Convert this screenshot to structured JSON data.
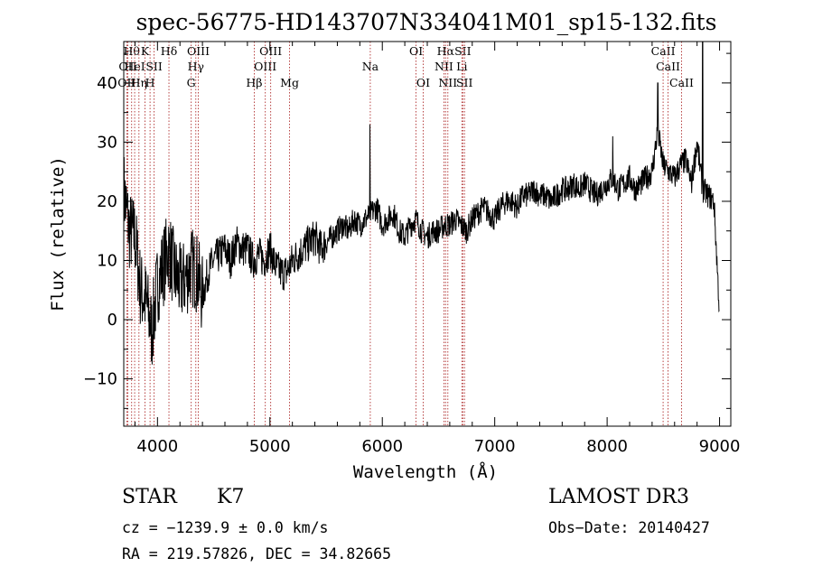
{
  "chart_data": {
    "type": "line",
    "title": "spec-56775-HD143707N334041M01_sp15-132.fits",
    "xlabel": "Wavelength (Å)",
    "ylabel": "Flux (relative)",
    "xlim": [
      3700,
      9100
    ],
    "ylim": [
      -18,
      47
    ],
    "x_ticks": [
      4000,
      5000,
      6000,
      7000,
      8000,
      9000
    ],
    "y_ticks": [
      -10,
      0,
      10,
      20,
      30,
      40
    ],
    "grid": false,
    "series": [
      {
        "x": [
          3700,
          3750,
          3800,
          3850,
          3900,
          3950,
          4000,
          4050,
          4100,
          4150,
          4200,
          4250,
          4300,
          4350,
          4400,
          4450,
          4500,
          4550,
          4600,
          4650,
          4700,
          4750,
          4800,
          4850,
          4900,
          4950,
          5000,
          5050,
          5100,
          5150,
          5200,
          5250,
          5300,
          5350,
          5400,
          5450,
          5500,
          5550,
          5600,
          5650,
          5700,
          5750,
          5800,
          5850,
          5900,
          5950,
          6000,
          6050,
          6100,
          6150,
          6200,
          6250,
          6300,
          6350,
          6400,
          6450,
          6500,
          6550,
          6600,
          6650,
          6700,
          6750,
          6800,
          6850,
          6900,
          6950,
          7000,
          7050,
          7100,
          7150,
          7200,
          7250,
          7300,
          7350,
          7400,
          7450,
          7500,
          7550,
          7600,
          7650,
          7700,
          7750,
          7800,
          7850,
          7900,
          7950,
          8000,
          8050,
          8100,
          8150,
          8200,
          8250,
          8300,
          8350,
          8400,
          8450,
          8500,
          8550,
          8600,
          8650,
          8700,
          8750,
          8800,
          8850,
          8900,
          8950,
          9000
        ],
        "y": [
          22,
          15,
          14,
          5,
          3,
          -2,
          6,
          9,
          12,
          8,
          6,
          7,
          9,
          8,
          4,
          8,
          10,
          11,
          12,
          10,
          13,
          12,
          12,
          10,
          11,
          10,
          12,
          9,
          8,
          8,
          10,
          11,
          12,
          13,
          14,
          12,
          13,
          14,
          15,
          16,
          15,
          17,
          16,
          17,
          18,
          19,
          16,
          17,
          18,
          15,
          14,
          16,
          17,
          15,
          14,
          15,
          15,
          16,
          16,
          17,
          16,
          15,
          17,
          18,
          19,
          18,
          17,
          19,
          20,
          20,
          19,
          21,
          21,
          22,
          21,
          21,
          20,
          21,
          22,
          22,
          23,
          22,
          23,
          22,
          21,
          22,
          23,
          24,
          22,
          23,
          24,
          22,
          23,
          24,
          25,
          32,
          26,
          25,
          24,
          26,
          27,
          23,
          30,
          22,
          21,
          20,
          1
        ]
      }
    ],
    "spikes": [
      {
        "x": 5890,
        "y": 33
      },
      {
        "x": 8450,
        "y": 40
      },
      {
        "x": 8850,
        "y": 48
      },
      {
        "x": 8050,
        "y": 31
      }
    ],
    "line_markers": [
      {
        "x": 3727,
        "label": "OII",
        "row": 2
      },
      {
        "x": 3736,
        "label": "OII",
        "row": 1
      },
      {
        "x": 3770,
        "label": "Hθ",
        "row": 0
      },
      {
        "x": 3797,
        "label": "HeI",
        "row": 1
      },
      {
        "x": 3835,
        "label": "Hη",
        "row": 2
      },
      {
        "x": 3889,
        "label": "K",
        "row": 0
      },
      {
        "x": 3934,
        "label": "H",
        "row": 2
      },
      {
        "x": 3970,
        "label": "SII",
        "row": 1
      },
      {
        "x": 4102,
        "label": "Hδ",
        "row": 0
      },
      {
        "x": 4300,
        "label": "G",
        "row": 2
      },
      {
        "x": 4341,
        "label": "Hγ",
        "row": 1
      },
      {
        "x": 4363,
        "label": "OIII",
        "row": 0
      },
      {
        "x": 4861,
        "label": "Hβ",
        "row": 2
      },
      {
        "x": 4959,
        "label": "OIII",
        "row": 1
      },
      {
        "x": 5007,
        "label": "OIII",
        "row": 0
      },
      {
        "x": 5175,
        "label": "Mg",
        "row": 2
      },
      {
        "x": 5893,
        "label": "Na",
        "row": 1
      },
      {
        "x": 6300,
        "label": "OI",
        "row": 0
      },
      {
        "x": 6364,
        "label": "OI",
        "row": 2
      },
      {
        "x": 6548,
        "label": "NII",
        "row": 1
      },
      {
        "x": 6563,
        "label": "Hα",
        "row": 0
      },
      {
        "x": 6583,
        "label": "NII",
        "row": 2
      },
      {
        "x": 6708,
        "label": "Li",
        "row": 1
      },
      {
        "x": 6716,
        "label": "SII",
        "row": 0
      },
      {
        "x": 6731,
        "label": "SII",
        "row": 2
      },
      {
        "x": 8498,
        "label": "CaII",
        "row": 0
      },
      {
        "x": 8542,
        "label": "CaII",
        "row": 1
      },
      {
        "x": 8662,
        "label": "CaII",
        "row": 2
      }
    ]
  },
  "info": {
    "class": "STAR",
    "subclass": "K7",
    "survey": "LAMOST DR3",
    "cz": "cz = −1239.9 ± 0.0 km/s",
    "obs_date": "Obs−Date: 20140427",
    "radec": "RA = 219.57826, DEC =  34.82665"
  },
  "colors": {
    "spectrum": "#000000",
    "marker": "#b03030"
  }
}
